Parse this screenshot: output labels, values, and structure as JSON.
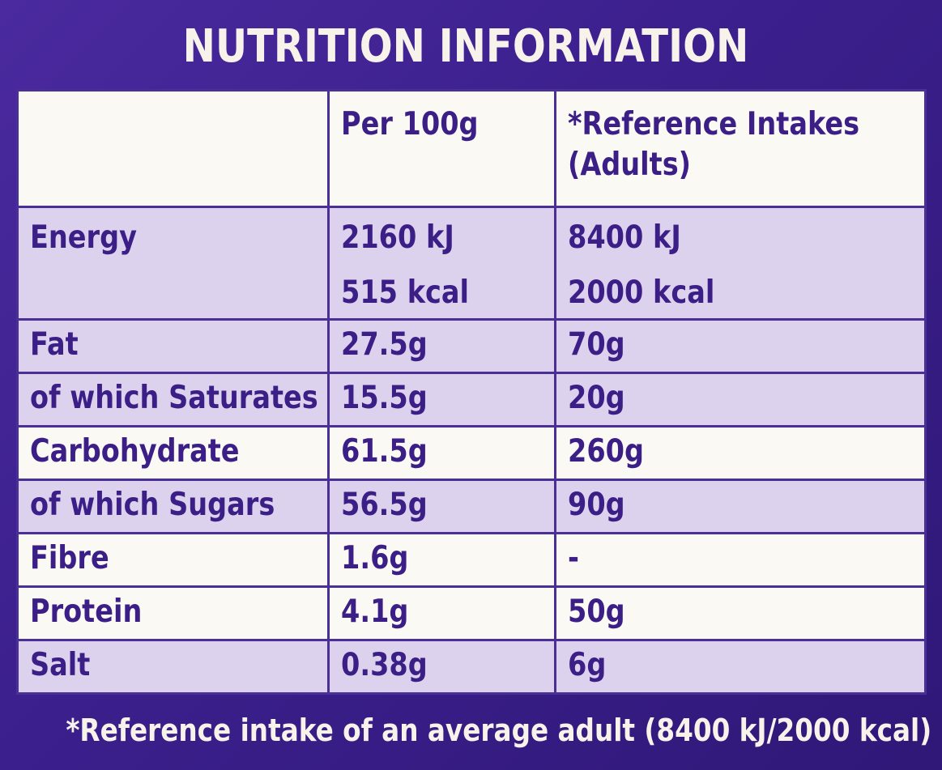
{
  "title": "NUTRITION INFORMATION",
  "columns": {
    "per100g": "Per 100g",
    "reference_line1": "*Reference Intakes",
    "reference_line2": "(Adults)"
  },
  "rows": [
    {
      "name": "Energy",
      "per100g": [
        "2160 kJ",
        "515 kcal"
      ],
      "reference": [
        "8400 kJ",
        "2000 kcal"
      ]
    },
    {
      "name": "Fat",
      "per100g": "27.5g",
      "reference": "70g"
    },
    {
      "name": "of which Saturates",
      "per100g": "15.5g",
      "reference": "20g"
    },
    {
      "name": "Carbohydrate",
      "per100g": "61.5g",
      "reference": "260g"
    },
    {
      "name": "of which Sugars",
      "per100g": "56.5g",
      "reference": "90g"
    },
    {
      "name": "Fibre",
      "per100g": "1.6g",
      "reference": "-"
    },
    {
      "name": "Protein",
      "per100g": "4.1g",
      "reference": "50g"
    },
    {
      "name": "Salt",
      "per100g": "0.38g",
      "reference": "6g"
    }
  ],
  "footnote": "*Reference intake of an average adult (8400 kJ/2000 kcal)",
  "colors": {
    "brand_purple": "#3b1f8c",
    "text_purple": "#3b1f86",
    "shaded_row": "#ddd2ee",
    "light_row": "#fbf9f4",
    "header_text": "#f7f2ea"
  }
}
